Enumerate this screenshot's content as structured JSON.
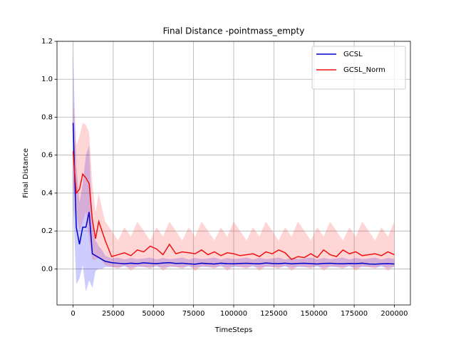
{
  "chart_data": {
    "type": "line",
    "title": "Final Distance -pointmass_empty",
    "x_label": "TimeSteps",
    "y_label": "Final Distance",
    "x": [
      0,
      2000,
      4000,
      6000,
      8000,
      10000,
      12000,
      14000,
      16000,
      18000,
      20000,
      24000,
      28000,
      32000,
      36000,
      40000,
      44000,
      48000,
      52000,
      56000,
      60000,
      64000,
      68000,
      72000,
      76000,
      80000,
      84000,
      88000,
      92000,
      96000,
      100000,
      104000,
      108000,
      112000,
      116000,
      120000,
      124000,
      128000,
      132000,
      136000,
      140000,
      144000,
      148000,
      152000,
      156000,
      160000,
      164000,
      168000,
      172000,
      176000,
      180000,
      184000,
      188000,
      192000,
      196000,
      200000
    ],
    "series": [
      {
        "name": "GCSL",
        "color": "#0000cc",
        "band_color": "#0000ff",
        "values": [
          0.77,
          0.22,
          0.13,
          0.22,
          0.22,
          0.3,
          0.08,
          0.07,
          0.06,
          0.05,
          0.04,
          0.033,
          0.03,
          0.027,
          0.03,
          0.028,
          0.032,
          0.03,
          0.028,
          0.031,
          0.033,
          0.029,
          0.03,
          0.027,
          0.025,
          0.03,
          0.028,
          0.026,
          0.03,
          0.028,
          0.027,
          0.029,
          0.03,
          0.028,
          0.027,
          0.031,
          0.029,
          0.028,
          0.03,
          0.027,
          0.029,
          0.03,
          0.028,
          0.026,
          0.029,
          0.03,
          0.028,
          0.027,
          0.029,
          0.028,
          0.03,
          0.026,
          0.025,
          0.027,
          0.028,
          0.026
        ],
        "band_lower": [
          0.35,
          -0.08,
          -0.05,
          0.02,
          -0.12,
          -0.06,
          -0.1,
          -0.01,
          0.0,
          0.0,
          0.01,
          0.01,
          0.008,
          0.012,
          0.006,
          0.01,
          0.01,
          0.008,
          0.012,
          0.006,
          0.01,
          0.01,
          0.008,
          0.012,
          0.006,
          0.01,
          0.01,
          0.008,
          0.012,
          0.006,
          0.01,
          0.01,
          0.008,
          0.012,
          0.006,
          0.01,
          0.01,
          0.008,
          0.012,
          0.006,
          0.01,
          0.01,
          0.008,
          0.012,
          0.006,
          0.01,
          0.01,
          0.008,
          0.012,
          0.006,
          0.01,
          0.01,
          0.008,
          0.012,
          0.006,
          0.01
        ],
        "band_upper": [
          1.15,
          0.55,
          0.35,
          0.45,
          0.6,
          0.65,
          0.26,
          0.15,
          0.12,
          0.1,
          0.07,
          0.055,
          0.06,
          0.05,
          0.058,
          0.052,
          0.055,
          0.06,
          0.05,
          0.058,
          0.052,
          0.055,
          0.06,
          0.05,
          0.058,
          0.052,
          0.055,
          0.06,
          0.05,
          0.058,
          0.052,
          0.055,
          0.06,
          0.05,
          0.058,
          0.052,
          0.055,
          0.06,
          0.05,
          0.058,
          0.052,
          0.055,
          0.06,
          0.05,
          0.058,
          0.052,
          0.055,
          0.06,
          0.05,
          0.058,
          0.052,
          0.055,
          0.06,
          0.05,
          0.058,
          0.052
        ]
      },
      {
        "name": "GCSL_Norm",
        "color": "#ee1111",
        "band_color": "#ff3333",
        "values": [
          0.62,
          0.4,
          0.42,
          0.5,
          0.48,
          0.45,
          0.26,
          0.16,
          0.25,
          0.2,
          0.15,
          0.065,
          0.075,
          0.085,
          0.07,
          0.1,
          0.09,
          0.12,
          0.105,
          0.075,
          0.13,
          0.08,
          0.09,
          0.085,
          0.08,
          0.1,
          0.075,
          0.09,
          0.07,
          0.085,
          0.08,
          0.07,
          0.075,
          0.08,
          0.065,
          0.09,
          0.08,
          0.1,
          0.085,
          0.05,
          0.065,
          0.06,
          0.08,
          0.06,
          0.1,
          0.075,
          0.065,
          0.1,
          0.08,
          0.09,
          0.07,
          0.075,
          0.08,
          0.07,
          0.09,
          0.075
        ],
        "band_lower": [
          0.45,
          0.3,
          0.2,
          0.25,
          0.3,
          0.15,
          0.05,
          0.05,
          0.06,
          0.04,
          0.02,
          0.01,
          0.0,
          0.02,
          -0.01,
          0.015,
          0.01,
          0.0,
          0.02,
          -0.01,
          0.015,
          0.01,
          0.0,
          0.02,
          -0.01,
          0.015,
          0.01,
          0.0,
          0.02,
          -0.01,
          0.015,
          0.01,
          0.0,
          0.02,
          -0.01,
          0.015,
          0.01,
          0.0,
          0.02,
          -0.01,
          0.015,
          0.01,
          0.0,
          0.02,
          -0.01,
          0.015,
          0.01,
          0.0,
          0.02,
          -0.01,
          0.015,
          0.01,
          0.0,
          0.02,
          -0.01,
          0.015
        ],
        "band_upper": [
          0.9,
          0.65,
          0.7,
          0.77,
          0.76,
          0.72,
          0.45,
          0.3,
          0.4,
          0.32,
          0.25,
          0.2,
          0.15,
          0.22,
          0.17,
          0.25,
          0.2,
          0.15,
          0.22,
          0.17,
          0.25,
          0.2,
          0.15,
          0.22,
          0.17,
          0.25,
          0.2,
          0.15,
          0.22,
          0.17,
          0.25,
          0.2,
          0.15,
          0.22,
          0.17,
          0.25,
          0.2,
          0.15,
          0.22,
          0.17,
          0.25,
          0.2,
          0.15,
          0.22,
          0.17,
          0.25,
          0.2,
          0.15,
          0.22,
          0.17,
          0.25,
          0.2,
          0.15,
          0.22,
          0.17,
          0.25
        ]
      }
    ],
    "xlim": [
      -10000,
      210000
    ],
    "ylim": [
      -0.19,
      1.2
    ],
    "xticks": [
      0,
      25000,
      50000,
      75000,
      100000,
      125000,
      150000,
      175000,
      200000
    ],
    "yticks": [
      {
        "value": 0,
        "label": "0.0"
      },
      {
        "value": 0.2,
        "label": "0.2"
      },
      {
        "value": 0.4,
        "label": "0.4"
      },
      {
        "value": 0.6,
        "label": "0.6"
      },
      {
        "value": 0.8,
        "label": "0.8"
      },
      {
        "value": 1.0,
        "label": "1.0"
      },
      {
        "value": 1.2,
        "label": "1.2"
      }
    ],
    "grid": true,
    "legend": "upper right"
  }
}
